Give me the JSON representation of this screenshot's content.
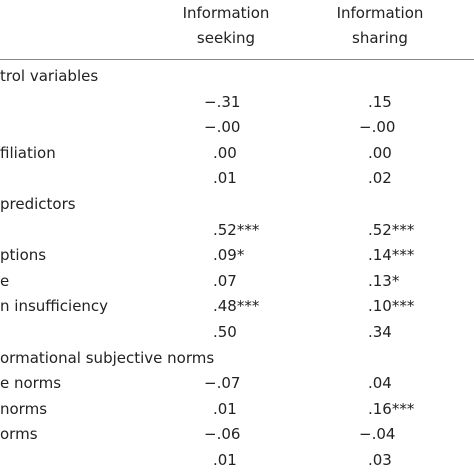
{
  "table": {
    "columns": [
      {
        "line1": "Information",
        "line2": "seeking"
      },
      {
        "line1": "Information",
        "line2": "sharing"
      }
    ],
    "rows": [
      {
        "label": "trol variables",
        "values": [
          null,
          null
        ]
      },
      {
        "label": null,
        "values": [
          "−.31",
          ".15"
        ]
      },
      {
        "label": null,
        "values": [
          "−.00",
          "−.00"
        ]
      },
      {
        "label": "filiation",
        "values": [
          ".00",
          ".00"
        ]
      },
      {
        "label": null,
        "values": [
          ".01",
          ".02"
        ]
      },
      {
        "label": "predictors",
        "values": [
          null,
          null
        ]
      },
      {
        "label": null,
        "values": [
          ".52***",
          ".52***"
        ]
      },
      {
        "label": "ptions",
        "values": [
          ".09*",
          ".14***"
        ]
      },
      {
        "label": "e",
        "values": [
          ".07",
          ".13*"
        ]
      },
      {
        "label": "n insufficiency",
        "values": [
          ".48***",
          ".10***"
        ]
      },
      {
        "label": null,
        "values": [
          ".50",
          ".34"
        ]
      },
      {
        "label": "ormational subjective norms",
        "values": [
          null,
          null
        ]
      },
      {
        "label": "e norms",
        "values": [
          "−.07",
          ".04"
        ]
      },
      {
        "label": "norms",
        "values": [
          ".01",
          ".16***"
        ]
      },
      {
        "label": "orms",
        "values": [
          "−.06",
          "−.04"
        ]
      },
      {
        "label": null,
        "values": [
          ".01",
          ".03"
        ]
      }
    ]
  }
}
